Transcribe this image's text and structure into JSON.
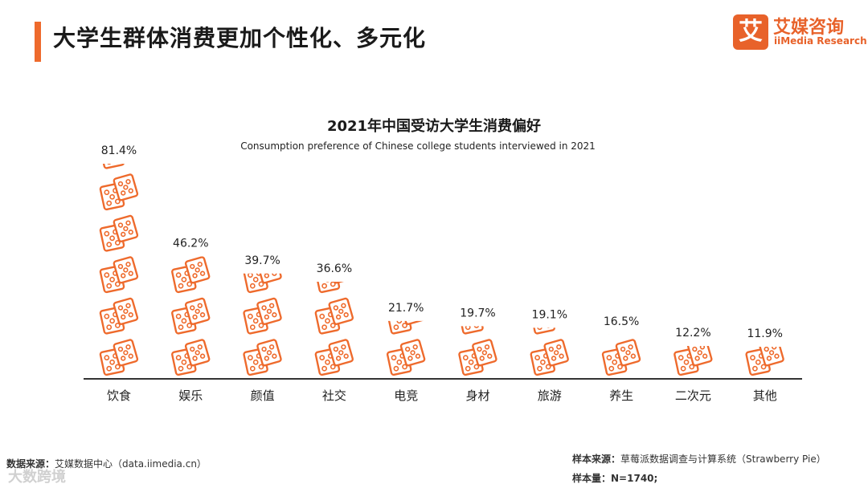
{
  "header": {
    "title": "大学生群体消费更加个性化、多元化"
  },
  "logo": {
    "mark": "艾",
    "name_cn": "艾媒咨询",
    "name_en": "iiMedia Research"
  },
  "footer": {
    "source_label": "数据来源：",
    "source_text": "艾媒数据中心（data.iimedia.cn）",
    "sample_source_label": "样本来源：",
    "sample_source_text": "草莓派数据调查与计算系统（Strawberry Pie）",
    "sample_size_label": "样本量：",
    "sample_size_text": "N=1740;",
    "watermark": "大数跨境"
  },
  "colors": {
    "accent": "#ee6a2c",
    "axis": "#333333"
  },
  "chart_data": {
    "type": "bar",
    "title": "2021年中国受访大学生消费偏好",
    "subtitle": "Consumption preference of Chinese college students interviewed in 2021",
    "categories": [
      "饮食",
      "娱乐",
      "颜值",
      "社交",
      "电竞",
      "身材",
      "旅游",
      "养生",
      "二次元",
      "其他"
    ],
    "values": [
      81.4,
      46.2,
      39.7,
      36.6,
      21.7,
      19.7,
      19.1,
      16.5,
      12.2,
      11.9
    ],
    "value_labels": [
      "81.4%",
      "46.2%",
      "39.7%",
      "36.6%",
      "21.7%",
      "19.7%",
      "19.1%",
      "16.5%",
      "12.2%",
      "11.9%"
    ],
    "xlabel": "",
    "ylabel": "",
    "ylim": [
      0,
      90
    ],
    "grid": false
  }
}
